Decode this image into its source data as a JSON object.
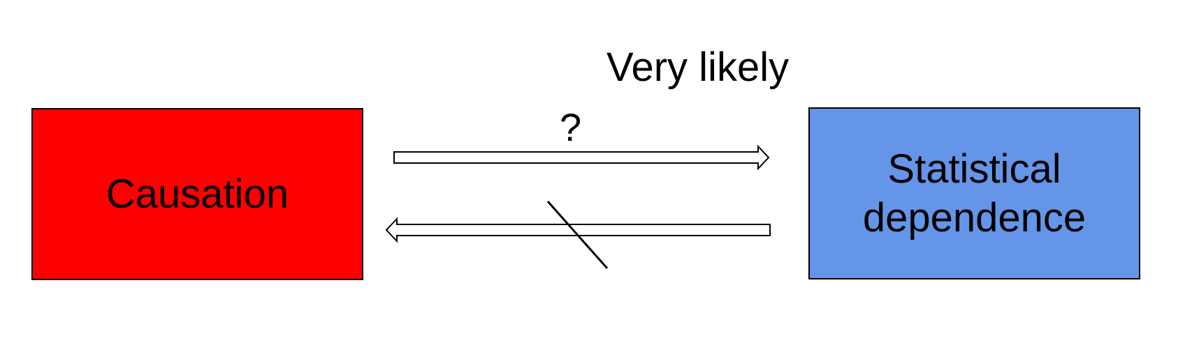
{
  "nodes": {
    "causation": {
      "label": "Causation",
      "color": "#ff0000"
    },
    "statistical_dependence": {
      "label": "Statistical\ndependence",
      "color": "#6495e8"
    }
  },
  "edges": {
    "forward": {
      "from": "Causation",
      "to": "Statistical dependence",
      "label": "?",
      "above_label": "Very likely"
    },
    "backward": {
      "from": "Statistical dependence",
      "to": "Causation",
      "crossed_out": true
    }
  }
}
